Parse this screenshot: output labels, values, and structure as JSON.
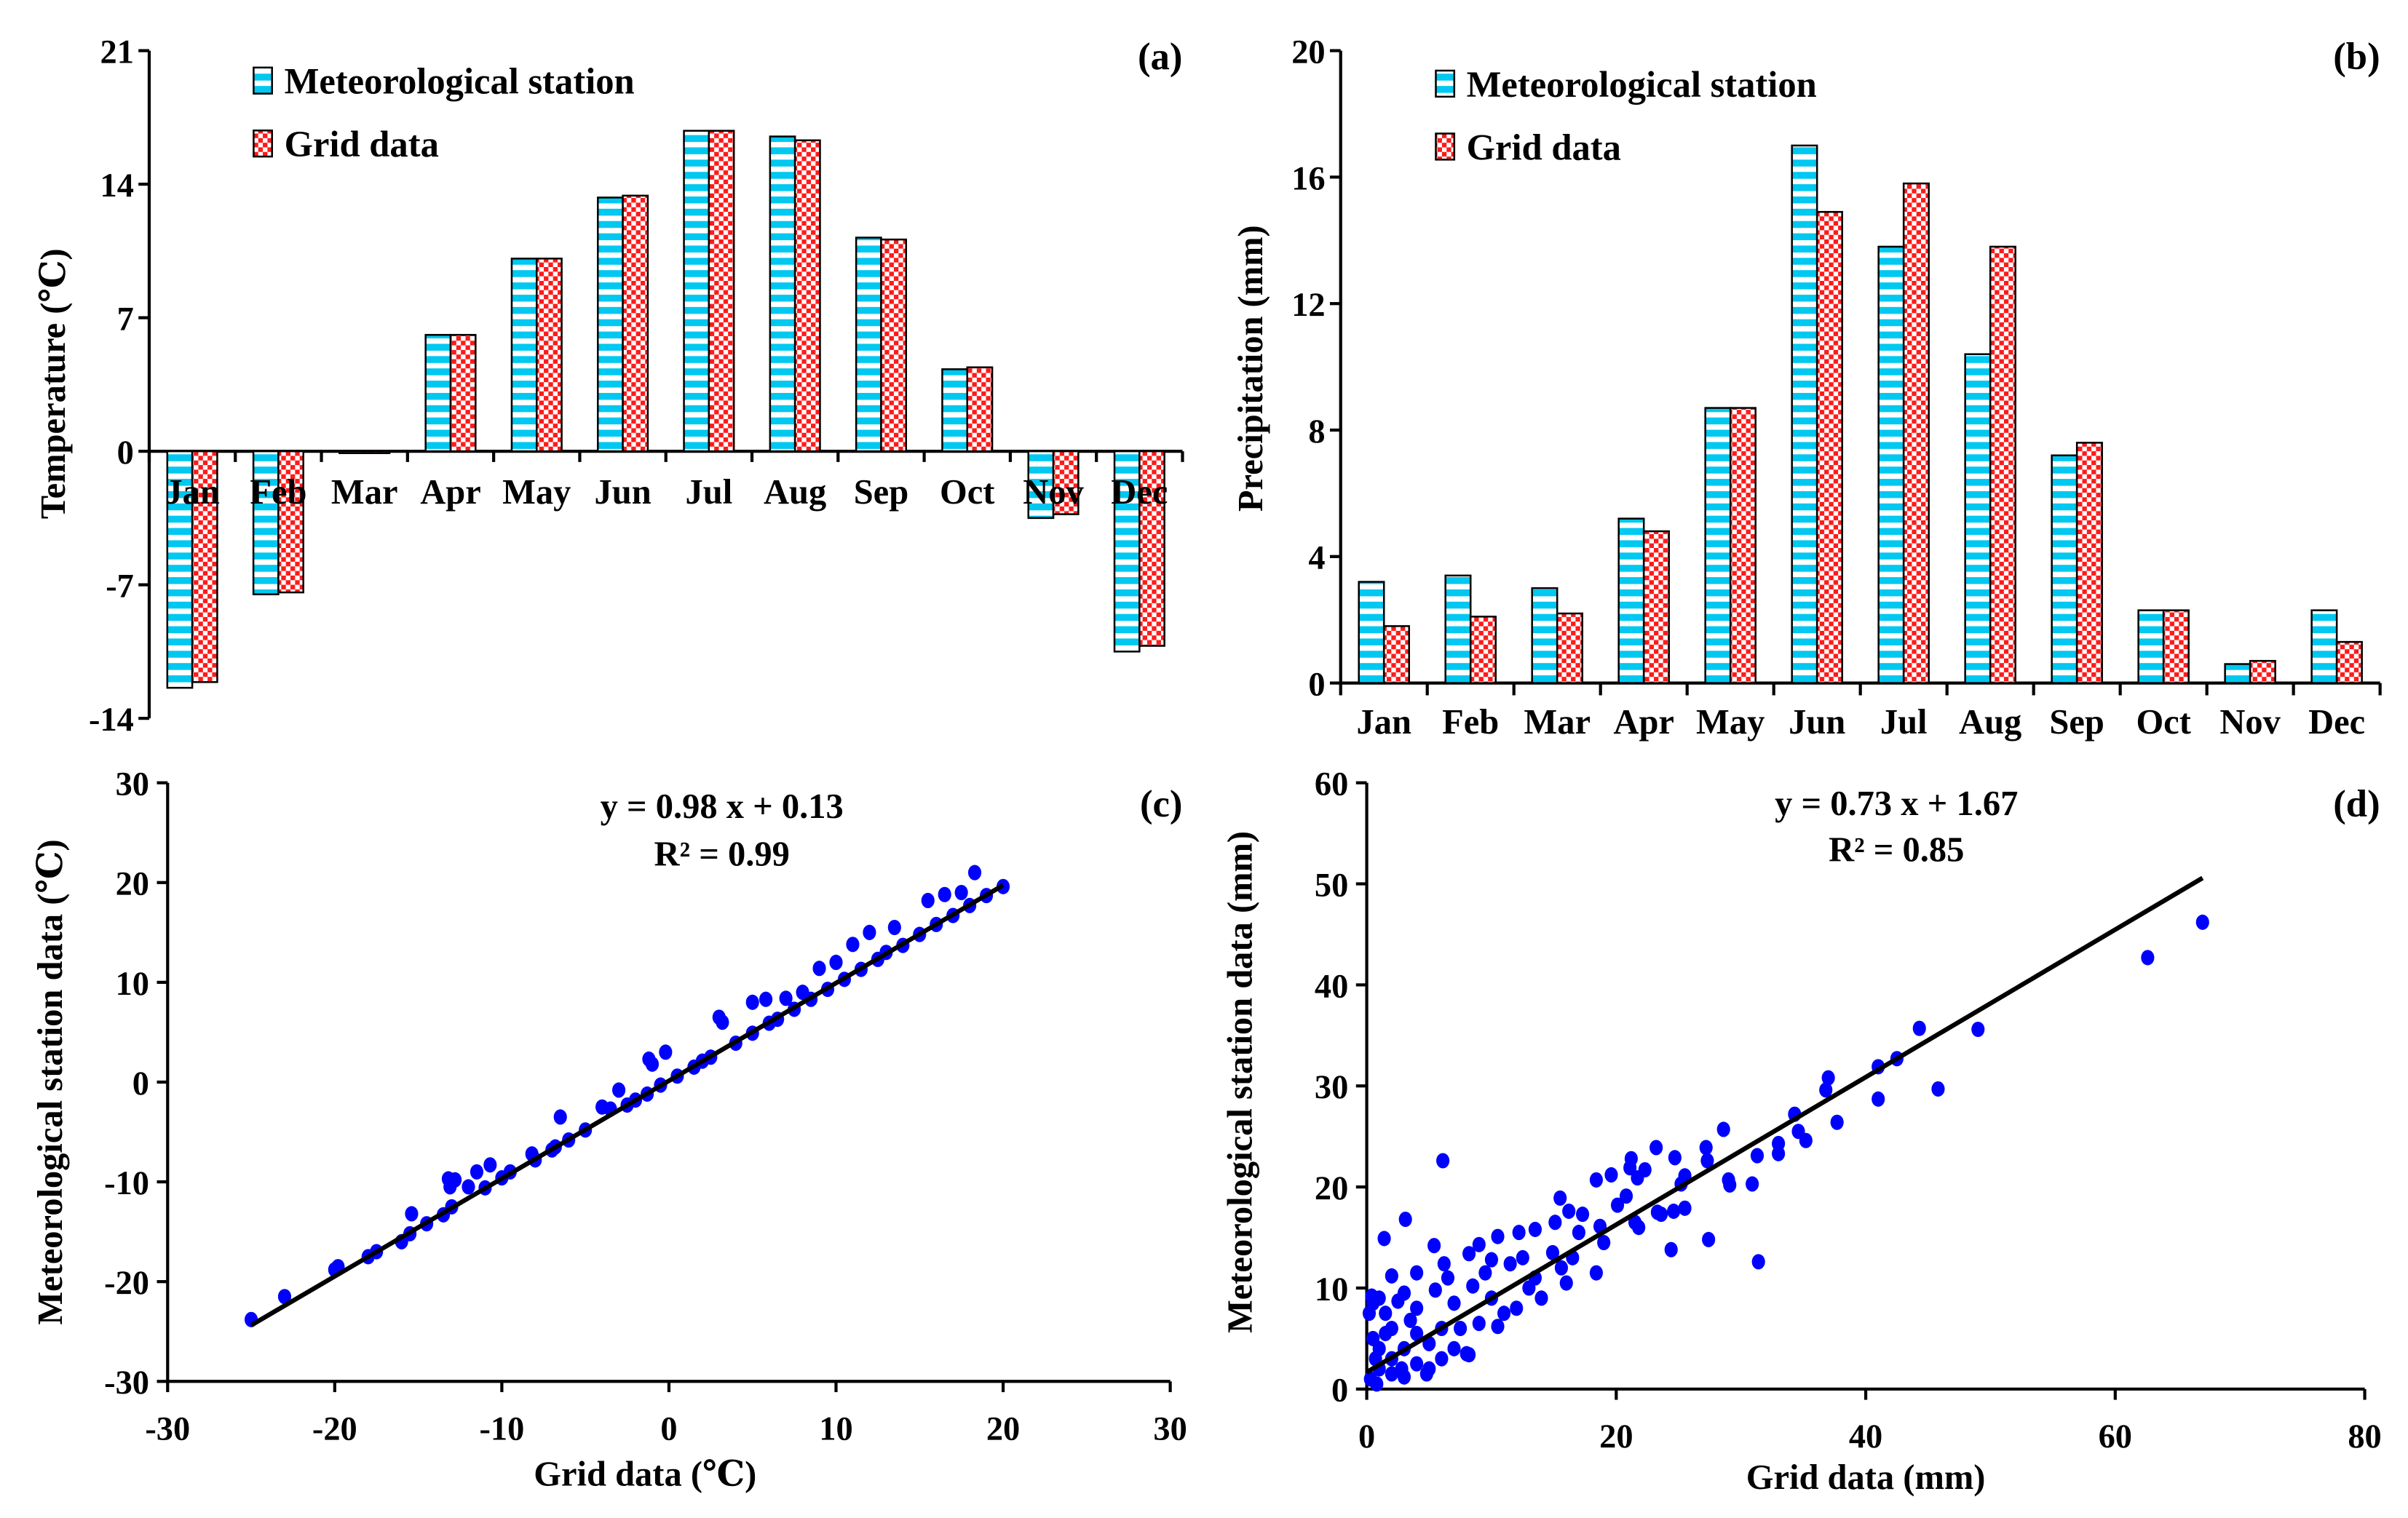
{
  "colors": {
    "station": "#00c8f0",
    "grid": "#ff1a1a",
    "point": "#0000ff",
    "axis": "#000000"
  },
  "chart_data": [
    {
      "type": "bar",
      "panel": "(a)",
      "ylabel": "Temperature (℃)",
      "xlabel": "",
      "ylim": [
        -14,
        21
      ],
      "yticks": [
        "21",
        "14",
        "7",
        "0",
        "-7",
        "-14"
      ],
      "ytick_values": [
        21,
        14,
        7,
        0,
        -7,
        -14
      ],
      "categories": [
        "Jan",
        "Feb",
        "Mar",
        "Apr",
        "May",
        "Jun",
        "Jul",
        "Aug",
        "Sep",
        "Oct",
        "Nov",
        "Dec"
      ],
      "legend": [
        "Meteorological station",
        "Grid data"
      ],
      "legend_position": "top-left",
      "series": [
        {
          "name": "Meteorological station",
          "values": [
            -12.4,
            -7.5,
            -0.1,
            6.1,
            10.1,
            13.3,
            16.8,
            16.5,
            11.2,
            4.3,
            -3.5,
            -10.5
          ]
        },
        {
          "name": "Grid data",
          "values": [
            -12.1,
            -7.4,
            -0.1,
            6.1,
            10.1,
            13.4,
            16.8,
            16.3,
            11.1,
            4.4,
            -3.3,
            -10.2
          ]
        }
      ]
    },
    {
      "type": "bar",
      "panel": "(b)",
      "ylabel": "Precipitation (mm)",
      "xlabel": "",
      "ylim": [
        0,
        20
      ],
      "yticks": [
        "20",
        "16",
        "12",
        "8",
        "4",
        "0"
      ],
      "ytick_values": [
        20,
        16,
        12,
        8,
        4,
        0
      ],
      "categories": [
        "Jan",
        "Feb",
        "Mar",
        "Apr",
        "May",
        "Jun",
        "Jul",
        "Aug",
        "Sep",
        "Oct",
        "Nov",
        "Dec"
      ],
      "legend": [
        "Meteorological station",
        "Grid data"
      ],
      "legend_position": "top-left",
      "series": [
        {
          "name": "Meteorological station",
          "values": [
            3.2,
            3.4,
            3.0,
            5.2,
            8.7,
            17.0,
            13.8,
            10.4,
            7.2,
            2.3,
            0.6,
            2.3
          ]
        },
        {
          "name": "Grid data",
          "values": [
            1.8,
            2.1,
            2.2,
            4.8,
            8.7,
            14.9,
            15.8,
            13.8,
            7.6,
            2.3,
            0.7,
            1.3
          ]
        }
      ]
    },
    {
      "type": "scatter",
      "panel": "(c)",
      "xlabel": "Grid data (℃)",
      "ylabel": "Meteorological station data (℃)",
      "xlim": [
        -30,
        30
      ],
      "ylim": [
        -30,
        30
      ],
      "xticks": [
        "-30",
        "-20",
        "-10",
        "0",
        "10",
        "20",
        "30"
      ],
      "xtick_values": [
        -30,
        -20,
        -10,
        0,
        10,
        20,
        30
      ],
      "yticks": [
        "30",
        "20",
        "10",
        "0",
        "-10",
        "-20",
        "-30"
      ],
      "ytick_values": [
        30,
        20,
        10,
        0,
        -10,
        -20,
        -30
      ],
      "equation": "y = 0.98 x + 0.13",
      "r2": "R² = 0.99",
      "fit": {
        "slope": 0.98,
        "intercept": 0.13,
        "xrange": [
          -25,
          20
        ]
      },
      "points": [
        [
          -25,
          -23.8
        ],
        [
          -23,
          -21.5
        ],
        [
          -20,
          -18.8
        ],
        [
          -19.8,
          -18.5
        ],
        [
          -18,
          -17.5
        ],
        [
          -17.5,
          -17
        ],
        [
          -16,
          -16
        ],
        [
          -15.5,
          -15.2
        ],
        [
          -15.4,
          -13.2
        ],
        [
          -14.5,
          -14.2
        ],
        [
          -13.5,
          -13.3
        ],
        [
          -13,
          -12.5
        ],
        [
          -13.1,
          -10.5
        ],
        [
          -13.2,
          -9.7
        ],
        [
          -12.8,
          -9.8
        ],
        [
          -12,
          -10.5
        ],
        [
          -11.5,
          -9
        ],
        [
          -11,
          -10.6
        ],
        [
          -10.7,
          -8.3
        ],
        [
          -10,
          -9.6
        ],
        [
          -9.5,
          -9
        ],
        [
          -8.2,
          -7.2
        ],
        [
          -8,
          -7.8
        ],
        [
          -7,
          -6.8
        ],
        [
          -6.8,
          -6.5
        ],
        [
          -6.5,
          -3.5
        ],
        [
          -6,
          -5.8
        ],
        [
          -5,
          -4.8
        ],
        [
          -4,
          -2.5
        ],
        [
          -3.5,
          -2.7
        ],
        [
          -3,
          -0.8
        ],
        [
          -2.5,
          -2.3
        ],
        [
          -2,
          -1.8
        ],
        [
          -1.3,
          -1.2
        ],
        [
          -0.5,
          -0.3
        ],
        [
          -1,
          1.8
        ],
        [
          -1.2,
          2.3
        ],
        [
          -0.2,
          3
        ],
        [
          0.5,
          0.6
        ],
        [
          1.5,
          1.5
        ],
        [
          2,
          2.1
        ],
        [
          2.5,
          2.5
        ],
        [
          3,
          6.5
        ],
        [
          3.2,
          6
        ],
        [
          4,
          3.9
        ],
        [
          5,
          4.9
        ],
        [
          5,
          8
        ],
        [
          5.8,
          8.3
        ],
        [
          6,
          5.9
        ],
        [
          6.5,
          6.3
        ],
        [
          7,
          8.4
        ],
        [
          7.5,
          7.3
        ],
        [
          8,
          9
        ],
        [
          8.5,
          8.3
        ],
        [
          9,
          11.4
        ],
        [
          9.5,
          9.3
        ],
        [
          10,
          12
        ],
        [
          10.5,
          10.3
        ],
        [
          11,
          13.8
        ],
        [
          11.5,
          11.3
        ],
        [
          12,
          15
        ],
        [
          12.5,
          12.3
        ],
        [
          13,
          13
        ],
        [
          13.5,
          15.5
        ],
        [
          14,
          13.7
        ],
        [
          15,
          14.8
        ],
        [
          15.5,
          18.2
        ],
        [
          16,
          15.8
        ],
        [
          16.5,
          18.8
        ],
        [
          17,
          16.7
        ],
        [
          17.5,
          19
        ],
        [
          18,
          17.7
        ],
        [
          18.3,
          21
        ],
        [
          19,
          18.7
        ],
        [
          20,
          19.6
        ]
      ]
    },
    {
      "type": "scatter",
      "panel": "(d)",
      "xlabel": "Grid data (mm)",
      "ylabel": "Meteorological station data (mm)",
      "xlim": [
        0,
        80
      ],
      "ylim": [
        0,
        60
      ],
      "xticks": [
        "0",
        "20",
        "40",
        "60",
        "80"
      ],
      "xtick_values": [
        0,
        20,
        40,
        60,
        80
      ],
      "yticks": [
        "60",
        "50",
        "40",
        "30",
        "20",
        "10",
        "0"
      ],
      "ytick_values": [
        60,
        50,
        40,
        30,
        20,
        10,
        0
      ],
      "equation": "y = 0.73 x + 1.67",
      "r2": "R² = 0.85",
      "fit": {
        "slope": 0.73,
        "intercept": 1.67,
        "xrange": [
          0,
          67
        ]
      },
      "points": [
        [
          67,
          46.2
        ],
        [
          62.6,
          42.7
        ],
        [
          49,
          35.6
        ],
        [
          44.3,
          35.7
        ],
        [
          45.8,
          29.7
        ],
        [
          42.5,
          32.7
        ],
        [
          41,
          31.9
        ],
        [
          41,
          28.7
        ],
        [
          37.7,
          26.4
        ],
        [
          36.8,
          29.6
        ],
        [
          37,
          30.8
        ],
        [
          34.3,
          27.2
        ],
        [
          34.6,
          25.5
        ],
        [
          33,
          24.3
        ],
        [
          35.2,
          24.6
        ],
        [
          33,
          23.3
        ],
        [
          28.6,
          25.7
        ],
        [
          27.2,
          23.9
        ],
        [
          27.3,
          22.6
        ],
        [
          31.3,
          23.1
        ],
        [
          31.4,
          12.6
        ],
        [
          30.9,
          20.3
        ],
        [
          29,
          20.7
        ],
        [
          29.1,
          20.2
        ],
        [
          25.5,
          21.1
        ],
        [
          25.2,
          20.3
        ],
        [
          23.2,
          23.9
        ],
        [
          24.7,
          22.9
        ],
        [
          21.1,
          21.9
        ],
        [
          21.2,
          22.8
        ],
        [
          21.7,
          20.9
        ],
        [
          22.3,
          21.7
        ],
        [
          24.6,
          17.6
        ],
        [
          25.5,
          17.9
        ],
        [
          23.6,
          17.3
        ],
        [
          23.3,
          17.5
        ],
        [
          21.5,
          16.5
        ],
        [
          21.8,
          16
        ],
        [
          27.4,
          14.8
        ],
        [
          24.4,
          13.8
        ],
        [
          18.4,
          20.7
        ],
        [
          19.6,
          21.2
        ],
        [
          20.1,
          18.2
        ],
        [
          20.8,
          19.1
        ],
        [
          6.1,
          22.6
        ],
        [
          3.1,
          16.8
        ],
        [
          1.4,
          14.9
        ],
        [
          5.4,
          14.2
        ],
        [
          15.5,
          18.9
        ],
        [
          16.2,
          17.6
        ],
        [
          17.3,
          17.3
        ],
        [
          15.1,
          16.5
        ],
        [
          18.7,
          16.1
        ],
        [
          17,
          15.5
        ],
        [
          13.5,
          15.8
        ],
        [
          12.2,
          15.5
        ],
        [
          10.5,
          15.1
        ],
        [
          9,
          14.3
        ],
        [
          8.2,
          13.4
        ],
        [
          14.9,
          13.5
        ],
        [
          11.5,
          12.4
        ],
        [
          10,
          12.8
        ],
        [
          6.2,
          12.4
        ],
        [
          4,
          11.5
        ],
        [
          2,
          11.2
        ],
        [
          15.6,
          12
        ],
        [
          18.4,
          11.5
        ],
        [
          16,
          10.5
        ],
        [
          13,
          10
        ],
        [
          8.5,
          10.2
        ],
        [
          5.5,
          9.8
        ],
        [
          3,
          9.5
        ],
        [
          1,
          9
        ],
        [
          0.5,
          8.5
        ],
        [
          1.5,
          7.5
        ],
        [
          4,
          8
        ],
        [
          7,
          8.5
        ],
        [
          10,
          9
        ],
        [
          12,
          8
        ],
        [
          14,
          9
        ],
        [
          11,
          7.5
        ],
        [
          9,
          6.5
        ],
        [
          6,
          6
        ],
        [
          4,
          5.5
        ],
        [
          2,
          6
        ],
        [
          0.5,
          5
        ],
        [
          1,
          4
        ],
        [
          3,
          4
        ],
        [
          5,
          4.5
        ],
        [
          7,
          4
        ],
        [
          8,
          3.5
        ],
        [
          2,
          3
        ],
        [
          4,
          2.5
        ],
        [
          1,
          2
        ],
        [
          0.3,
          1
        ],
        [
          0.8,
          0.5
        ],
        [
          2,
          1.5
        ],
        [
          3,
          1.2
        ],
        [
          5,
          2
        ],
        [
          6,
          3
        ],
        [
          8.2,
          3.4
        ],
        [
          4.8,
          1.5
        ],
        [
          0.2,
          7.5
        ],
        [
          0.4,
          9.2
        ],
        [
          2.5,
          8.7
        ],
        [
          6.5,
          11
        ],
        [
          9.5,
          11.5
        ],
        [
          12.5,
          13
        ],
        [
          1.5,
          5.5
        ],
        [
          3.5,
          6.8
        ],
        [
          0.7,
          3
        ],
        [
          2.8,
          2
        ],
        [
          7.5,
          6
        ],
        [
          10.5,
          6.2
        ],
        [
          13.5,
          11
        ],
        [
          16.5,
          13
        ],
        [
          19,
          14.5
        ]
      ]
    }
  ]
}
